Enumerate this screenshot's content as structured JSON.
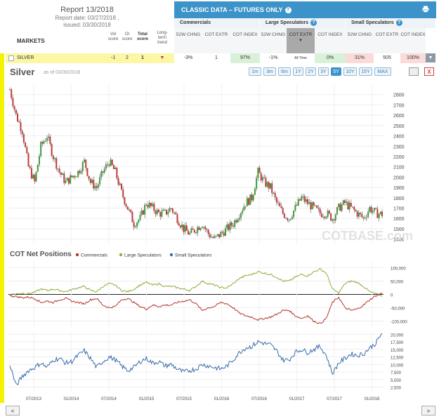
{
  "header": {
    "report_title": "Report 13/2018",
    "report_date": "Report date: 03/27/2018 ,",
    "issued": "issued: 03/30/2018",
    "markets_label": "MARKETS",
    "vol_score": "Vol score",
    "oi_score": "OI score",
    "total_score": "Total score",
    "long_term_trend": "Long-term trend"
  },
  "classic": {
    "title": "CLASSIC DATA – FUTURES ONLY",
    "groups": [
      "Commercials",
      "Large Speculators",
      "Small Speculators"
    ],
    "subcols": [
      "52W CHNG",
      "COT EXTR",
      "COT INDEX",
      "52W CHNG",
      "COT EXTR",
      "COT INDEX",
      "52W CHNG",
      "COT EXTR",
      "COT INDEX"
    ]
  },
  "market_row": {
    "name": "SILVER",
    "vol": "-1",
    "oi": "2",
    "total": "1",
    "values": [
      "-3%",
      "1",
      "97%",
      "-1%",
      "All Time",
      "0%",
      "31%",
      "505",
      "100%"
    ]
  },
  "chart_header": {
    "title": "Silver",
    "as_of": "as of 03/30/2018",
    "ranges": [
      "1m",
      "3m",
      "6m",
      "1Y",
      "2Y",
      "3Y",
      "5Y",
      "10Y",
      "15Y",
      "MAX"
    ],
    "active_range": "5Y",
    "close_label": "X"
  },
  "nav": {
    "prev": "«",
    "next": "»"
  },
  "colors": {
    "commercials": "#b5342f",
    "large": "#8fad3f",
    "small": "#3a6cab",
    "up": "#3c9a3c",
    "down": "#c23838",
    "accent": "#3b93c9"
  },
  "chart_data": [
    {
      "type": "candlestick",
      "title": "",
      "ylim": [
        1350,
        2900
      ],
      "yticks": [
        1400,
        1500,
        1600,
        1700,
        1800,
        1900,
        2000,
        2100,
        2200,
        2300,
        2400,
        2500,
        2600,
        2700,
        2800
      ],
      "watermark": "COTBASE.com",
      "x": [
        "2013-03",
        "2013-04",
        "2013-05",
        "2013-06",
        "2013-07",
        "2013-08",
        "2013-09",
        "2013-10",
        "2013-11",
        "2013-12",
        "2014-01",
        "2014-02",
        "2014-03",
        "2014-04",
        "2014-05",
        "2014-06",
        "2014-07",
        "2014-08",
        "2014-09",
        "2014-10",
        "2014-11",
        "2014-12",
        "2015-01",
        "2015-02",
        "2015-03",
        "2015-04",
        "2015-05",
        "2015-06",
        "2015-07",
        "2015-08",
        "2015-09",
        "2015-10",
        "2015-11",
        "2015-12",
        "2016-01",
        "2016-02",
        "2016-03",
        "2016-04",
        "2016-05",
        "2016-06",
        "2016-07",
        "2016-08",
        "2016-09",
        "2016-10",
        "2016-11",
        "2016-12",
        "2017-01",
        "2017-02",
        "2017-03",
        "2017-04",
        "2017-05",
        "2017-06",
        "2017-07",
        "2017-08",
        "2017-09",
        "2017-10",
        "2017-11",
        "2017-12",
        "2018-01",
        "2018-02",
        "2018-03"
      ],
      "close": [
        2850,
        2600,
        2450,
        2100,
        1950,
        2300,
        2400,
        2200,
        2050,
        1950,
        2000,
        2050,
        2150,
        1950,
        1900,
        2050,
        2150,
        2050,
        1850,
        1700,
        1550,
        1600,
        1750,
        1700,
        1650,
        1650,
        1700,
        1600,
        1500,
        1450,
        1500,
        1550,
        1450,
        1400,
        1450,
        1500,
        1550,
        1650,
        1750,
        1800,
        2050,
        1950,
        1900,
        1750,
        1650,
        1600,
        1700,
        1800,
        1750,
        1700,
        1650,
        1650,
        1600,
        1700,
        1750,
        1700,
        1650,
        1600,
        1700,
        1650,
        1640
      ]
    },
    {
      "type": "line",
      "title": "COT Net Positions",
      "ylim": [
        -125000,
        125000
      ],
      "yticks": [
        100000,
        50000,
        0,
        -50000,
        -100000
      ],
      "ytick_labels": [
        "100,000",
        "50,000",
        "0",
        "-50,000",
        "-100,000"
      ],
      "series": [
        {
          "name": "Commercials",
          "values": [
            -5000,
            -8000,
            -12000,
            -10000,
            -15000,
            -30000,
            -25000,
            -30000,
            -20000,
            -15000,
            -25000,
            -30000,
            -35000,
            -20000,
            -15000,
            -40000,
            -50000,
            -45000,
            -20000,
            -15000,
            -30000,
            -45000,
            -55000,
            -40000,
            -45000,
            -40000,
            -40000,
            -30000,
            -25000,
            -20000,
            -35000,
            -60000,
            -50000,
            -45000,
            -30000,
            -35000,
            -50000,
            -70000,
            -80000,
            -85000,
            -95000,
            -90000,
            -85000,
            -75000,
            -60000,
            -60000,
            -80000,
            -90000,
            -80000,
            -100000,
            -110000,
            -90000,
            -30000,
            -10000,
            -50000,
            -60000,
            -55000,
            -40000,
            -20000,
            -5000,
            5000
          ]
        },
        {
          "name": "Large Speculators",
          "values": [
            0,
            2000,
            5000,
            3000,
            8000,
            20000,
            15000,
            20000,
            15000,
            10000,
            18000,
            25000,
            30000,
            15000,
            10000,
            30000,
            40000,
            35000,
            15000,
            10000,
            20000,
            35000,
            45000,
            35000,
            40000,
            30000,
            30000,
            25000,
            20000,
            15000,
            30000,
            50000,
            40000,
            35000,
            25000,
            25000,
            40000,
            60000,
            70000,
            75000,
            85000,
            80000,
            75000,
            65000,
            50000,
            50000,
            65000,
            75000,
            70000,
            85000,
            95000,
            80000,
            20000,
            5000,
            40000,
            50000,
            45000,
            30000,
            10000,
            2000,
            -5000
          ]
        }
      ],
      "small_speculators": {
        "name": "Small Speculators",
        "ylim": [
          1000,
          21000
        ],
        "yticks": [
          2500,
          5000,
          7500,
          10000,
          12500,
          15000,
          17500,
          20000
        ],
        "ytick_labels": [
          "2,500",
          "5,000",
          "7,500",
          "10,000",
          "12,500",
          "15,000",
          "17,500",
          "20,000"
        ],
        "values": [
          10000,
          3000,
          6000,
          8000,
          9000,
          10500,
          9000,
          11500,
          12000,
          10500,
          11000,
          13000,
          14500,
          12000,
          9000,
          11000,
          12500,
          11500,
          9500,
          8000,
          9000,
          11000,
          12000,
          10500,
          11000,
          9500,
          10000,
          8500,
          7500,
          8000,
          8500,
          10000,
          9500,
          9000,
          8500,
          9500,
          11500,
          14000,
          15500,
          16000,
          17500,
          17000,
          16500,
          14500,
          11500,
          11500,
          14000,
          15000,
          14000,
          15000,
          16000,
          13000,
          7000,
          10500,
          12000,
          13500,
          13000,
          13500,
          15500,
          17000,
          20500
        ]
      },
      "x_tick_labels": [
        "07/2013",
        "01/2014",
        "07/2014",
        "01/2015",
        "07/2015",
        "01/2016",
        "07/2016",
        "01/2017",
        "07/2017",
        "01/2018"
      ]
    }
  ]
}
